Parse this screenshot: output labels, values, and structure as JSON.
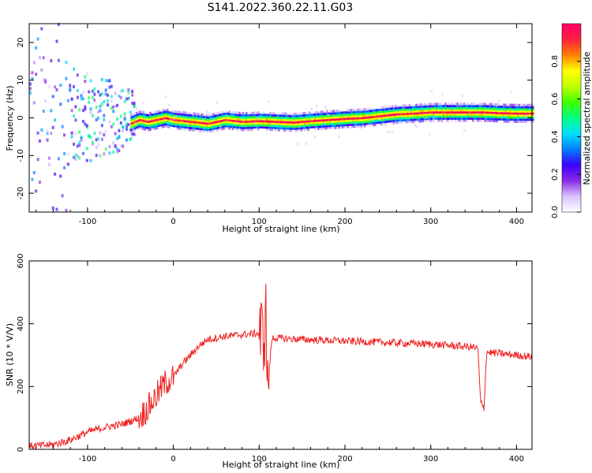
{
  "title": "S141.2022.360.22.11.G03",
  "chart_data": [
    {
      "type": "heatmap",
      "title": "S141.2022.360.22.11.G03",
      "xlabel": "Height of straight line (km)",
      "ylabel": "Frequency (Hz)",
      "xlim": [
        -168,
        418
      ],
      "ylim": [
        -25,
        25
      ],
      "x_ticks": [
        -100,
        0,
        100,
        200,
        300,
        400
      ],
      "x_tick_labels": [
        "-100",
        "0",
        "100",
        "200",
        "300",
        "400"
      ],
      "y_ticks": [
        -20,
        -10,
        0,
        10,
        20
      ],
      "y_tick_labels": [
        "-20",
        "-10",
        "0",
        "10",
        "20"
      ],
      "colorbar": {
        "label": "Normalized spectral amplitude",
        "range": [
          0,
          1
        ],
        "ticks": [
          0.0,
          0.2,
          0.4,
          0.6,
          0.8
        ],
        "tick_labels": [
          "0.0",
          "0.2",
          "0.4",
          "0.6",
          "0.8"
        ],
        "colors": [
          "#ffffff",
          "#d9c2ff",
          "#8a2be2",
          "#3a00ff",
          "#0080ff",
          "#00e0ff",
          "#00ff80",
          "#40ff00",
          "#c0ff00",
          "#ffff00",
          "#ff8000",
          "#ff2040",
          "#ff0066"
        ]
      },
      "ridge_frequency": {
        "x": [
          -50,
          -40,
          -30,
          -20,
          -10,
          0,
          20,
          40,
          60,
          80,
          100,
          120,
          140,
          160,
          180,
          200,
          220,
          240,
          260,
          280,
          300,
          320,
          340,
          360,
          380,
          400,
          418
        ],
        "y": [
          -1.5,
          -0.5,
          -1,
          -0.5,
          0,
          -0.5,
          -1,
          -1.5,
          -0.5,
          -1,
          -0.8,
          -1,
          -1.2,
          -0.8,
          -0.5,
          -0.2,
          0,
          0.5,
          1,
          1.2,
          1.5,
          1.5,
          1.5,
          1.5,
          1.3,
          1.2,
          1.2
        ]
      }
    },
    {
      "type": "line",
      "title": "",
      "xlabel": "Height of straight line (km)",
      "ylabel": "SNR (10 * V/V)",
      "xlim": [
        -168,
        418
      ],
      "ylim": [
        0,
        600
      ],
      "x_ticks": [
        -100,
        0,
        100,
        200,
        300,
        400
      ],
      "x_tick_labels": [
        "-100",
        "0",
        "100",
        "200",
        "300",
        "400"
      ],
      "y_ticks": [
        0,
        200,
        400,
        600
      ],
      "y_tick_labels": [
        "0",
        "200",
        "400",
        "600"
      ],
      "series": [
        {
          "color": "#ee2222",
          "x": [
            -168,
            -140,
            -120,
            -100,
            -80,
            -60,
            -40,
            -30,
            -20,
            -10,
            0,
            10,
            20,
            30,
            40,
            50,
            60,
            80,
            100,
            105,
            108,
            110,
            115,
            150,
            200,
            250,
            300,
            350,
            355,
            358,
            362,
            365,
            380,
            400,
            418
          ],
          "y": [
            10,
            15,
            30,
            55,
            70,
            80,
            100,
            130,
            170,
            210,
            230,
            270,
            300,
            330,
            350,
            355,
            360,
            365,
            370,
            360,
            420,
            200,
            355,
            350,
            345,
            340,
            335,
            325,
            320,
            150,
            130,
            310,
            305,
            300,
            295
          ]
        }
      ]
    }
  ]
}
